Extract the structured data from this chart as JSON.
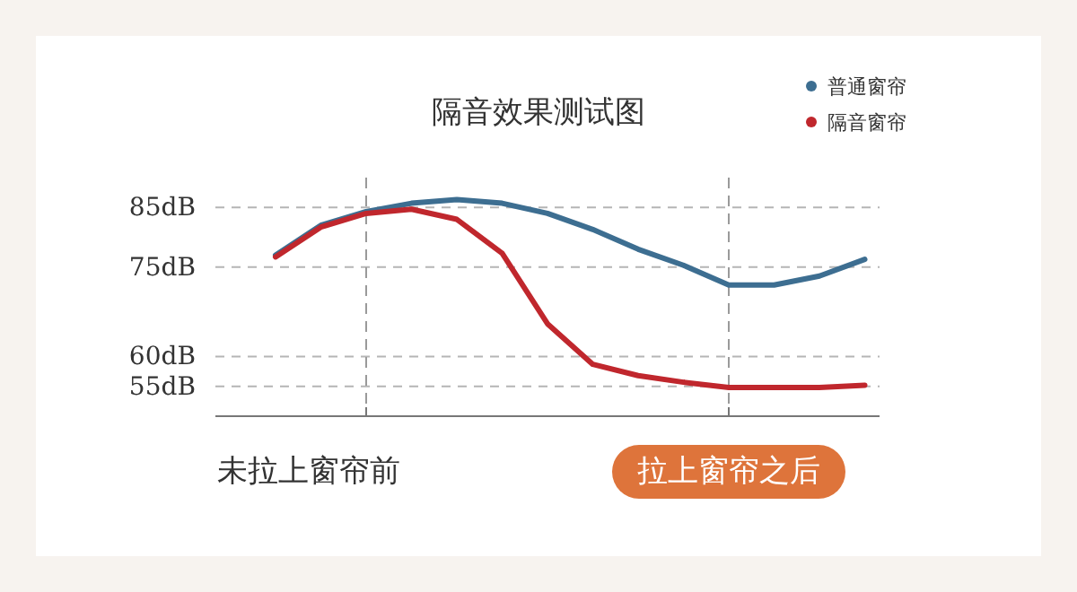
{
  "chart_data": {
    "type": "line",
    "title": "隔音效果测试图",
    "categories": [
      null,
      null,
      null,
      null,
      null,
      null,
      null,
      null,
      null,
      null,
      null,
      null,
      null,
      null
    ],
    "ylim": [
      50,
      90
    ],
    "yticks": [
      {
        "value": 85,
        "label": "85dB"
      },
      {
        "value": 75,
        "label": "75dB"
      },
      {
        "value": 60,
        "label": "60dB"
      },
      {
        "value": 55,
        "label": "55dB"
      }
    ],
    "grid": "y",
    "legend": "top right",
    "marker": "none",
    "line_style": "solid",
    "annotations": [
      "未拉上窗帘前",
      "拉上窗帘之后"
    ],
    "series": [
      {
        "name": "普通窗帘",
        "color": "#3d6e91",
        "values": [
          77,
          82,
          84.3,
          85.7,
          86.3,
          85.7,
          84,
          81.3,
          78,
          75.3,
          72,
          72,
          73.5,
          76.3
        ]
      },
      {
        "name": "隔音窗帘",
        "color": "#c0272d",
        "values": [
          76.7,
          81.7,
          84,
          84.7,
          83,
          77.3,
          65.5,
          58.7,
          56.8,
          55.7,
          54.8,
          54.8,
          54.8,
          55.2
        ]
      }
    ]
  }
}
